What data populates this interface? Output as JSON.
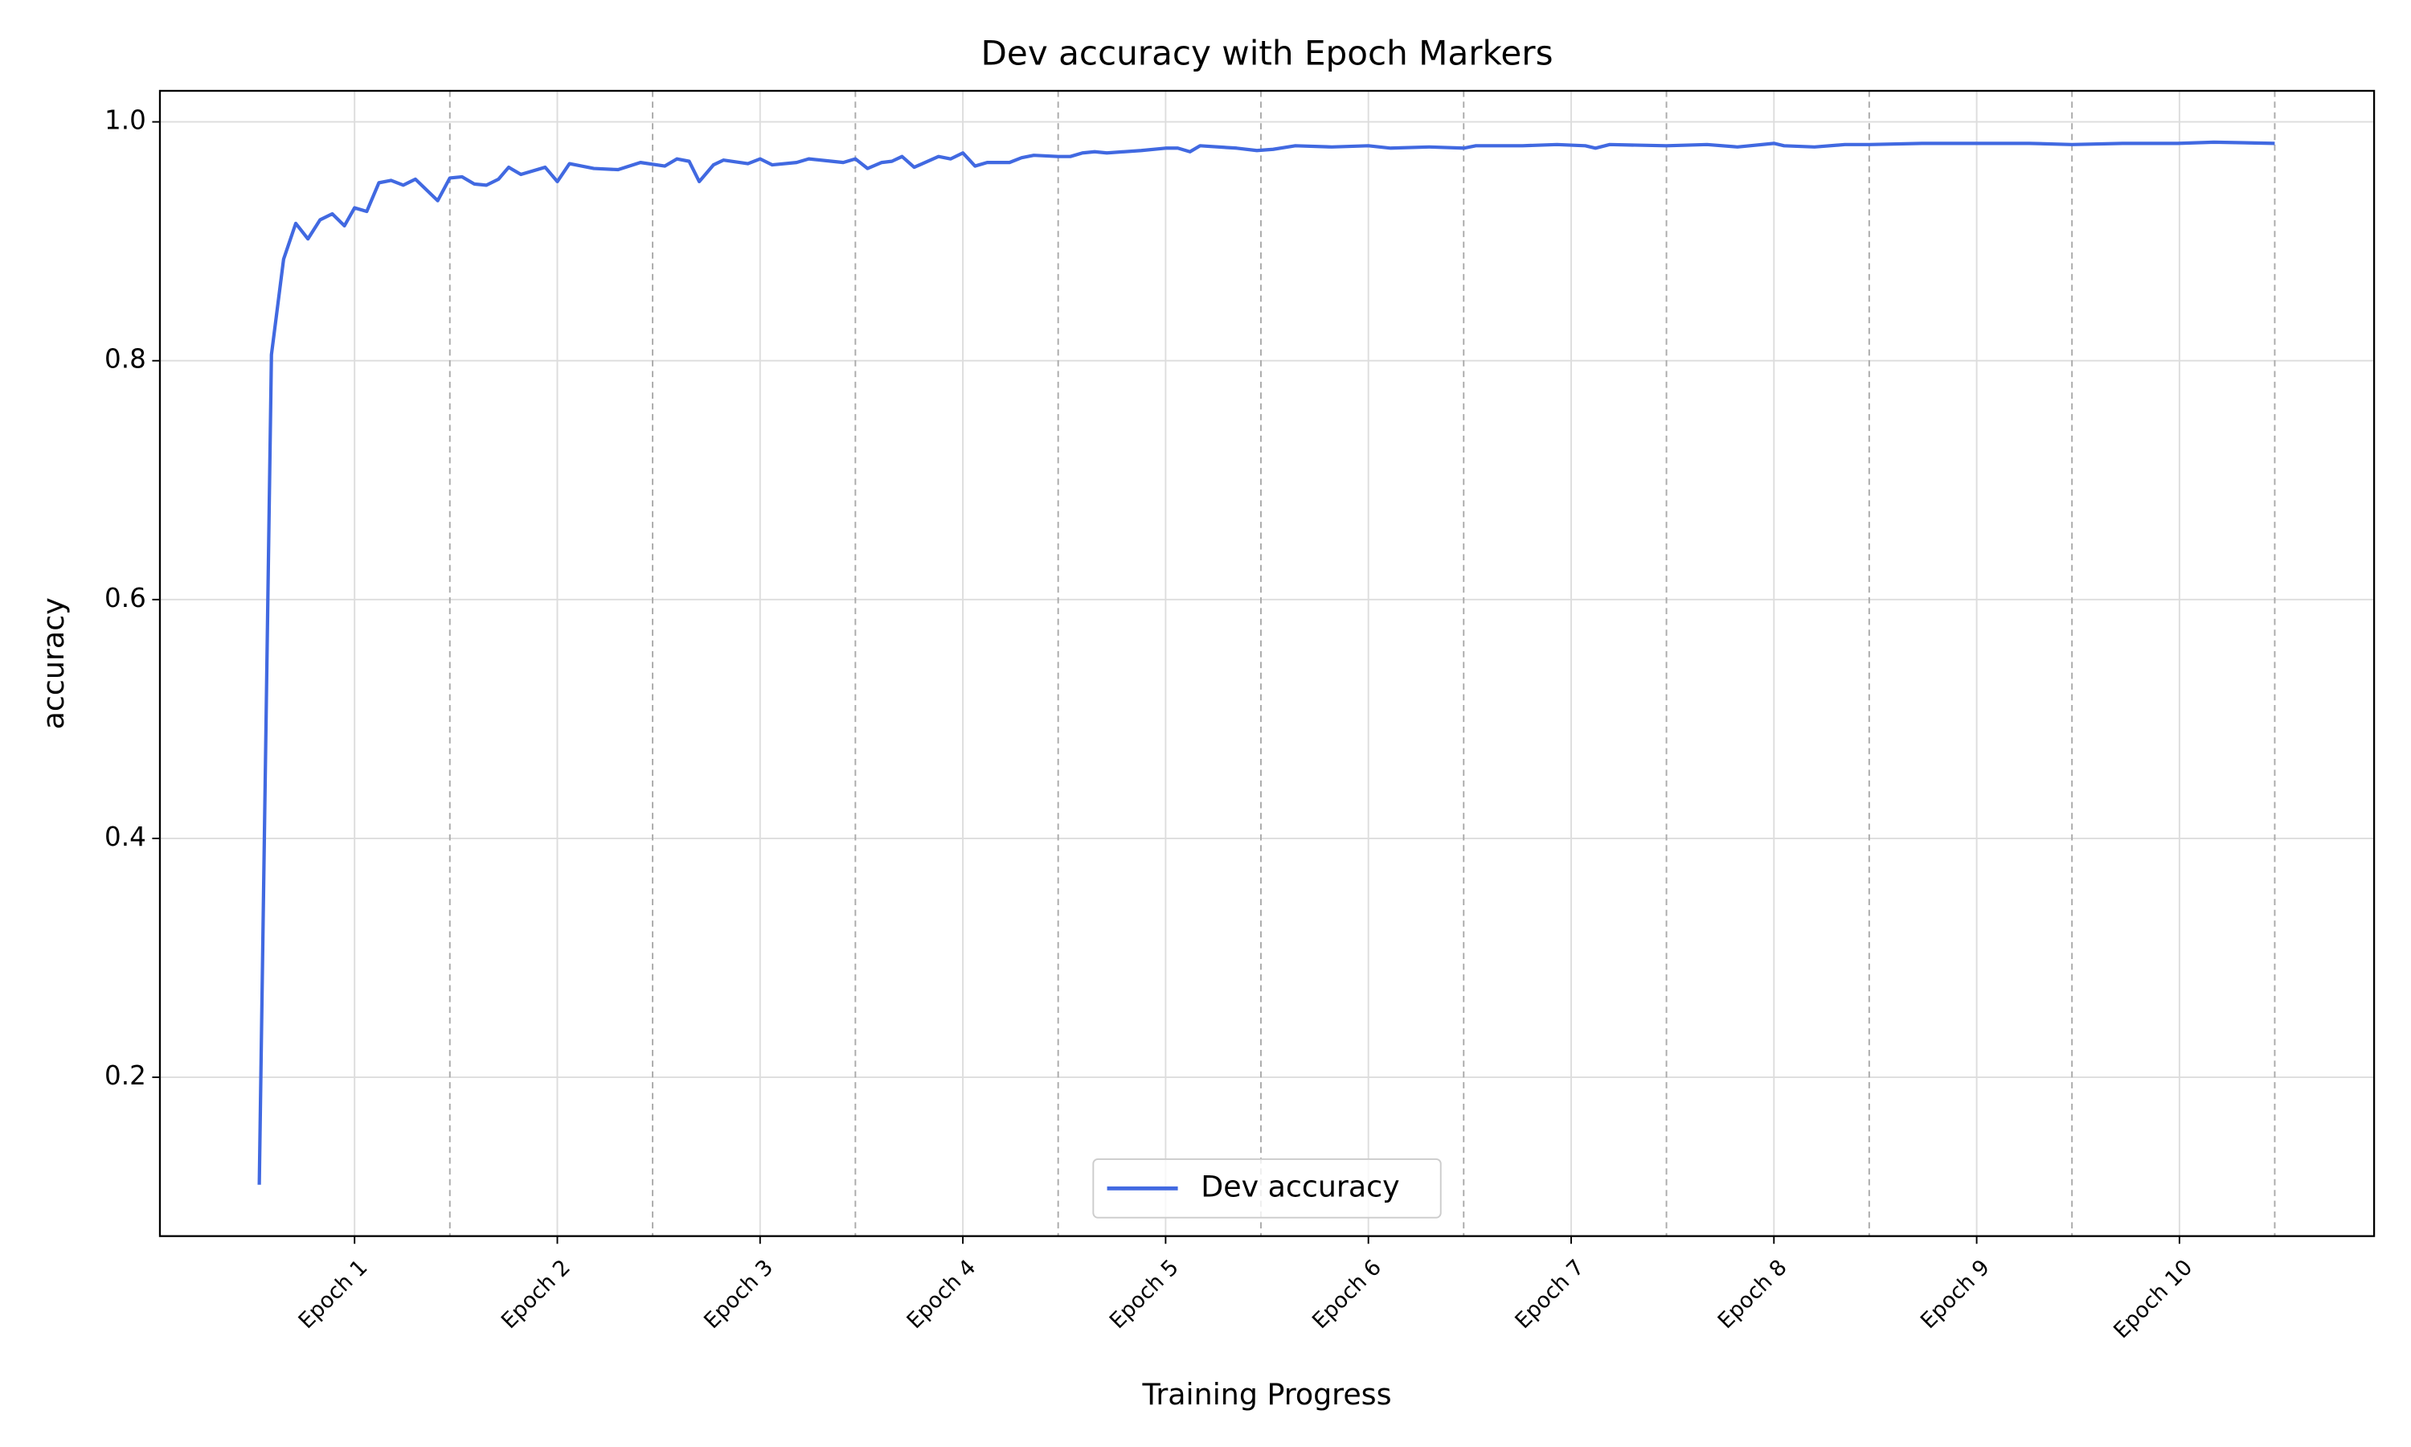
{
  "chart_data": {
    "type": "line",
    "title": "Dev accuracy with Epoch Markers",
    "x_label": "Training Progress",
    "y_label": "accuracy",
    "xlim": [
      -0.43,
      10.49
    ],
    "ylim": [
      0.067,
      1.026
    ],
    "xticks": [
      {
        "value": 0.53,
        "label": "Epoch 1"
      },
      {
        "value": 1.53,
        "label": "Epoch 2"
      },
      {
        "value": 2.53,
        "label": "Epoch 3"
      },
      {
        "value": 3.53,
        "label": "Epoch 4"
      },
      {
        "value": 4.53,
        "label": "Epoch 5"
      },
      {
        "value": 5.53,
        "label": "Epoch 6"
      },
      {
        "value": 6.53,
        "label": "Epoch 7"
      },
      {
        "value": 7.53,
        "label": "Epoch 8"
      },
      {
        "value": 8.53,
        "label": "Epoch 9"
      },
      {
        "value": 9.53,
        "label": "Epoch 10"
      }
    ],
    "yticks": [
      0.2,
      0.4,
      0.6,
      0.8,
      {
        "value": 1,
        "label": "1.0"
      }
    ],
    "epoch_markers": [
      1,
      2,
      3,
      4,
      5,
      6,
      7,
      8,
      9,
      10
    ],
    "grid": true,
    "legend_loc": "lower center",
    "x": [
      0.06,
      0.12,
      0.18,
      0.24,
      0.3,
      0.36,
      0.42,
      0.48,
      0.53,
      0.59,
      0.65,
      0.71,
      0.77,
      0.83,
      0.94,
      1.0,
      1.06,
      1.12,
      1.18,
      1.24,
      1.29,
      1.35,
      1.47,
      1.53,
      1.59,
      1.71,
      1.83,
      1.94,
      2.06,
      2.12,
      2.18,
      2.23,
      2.3,
      2.35,
      2.47,
      2.53,
      2.59,
      2.71,
      2.77,
      2.94,
      3.0,
      3.06,
      3.13,
      3.18,
      3.23,
      3.29,
      3.41,
      3.47,
      3.53,
      3.59,
      3.65,
      3.76,
      3.82,
      3.88,
      4.0,
      4.06,
      4.12,
      4.18,
      4.24,
      4.41,
      4.53,
      4.59,
      4.65,
      4.7,
      4.88,
      4.98,
      5.06,
      5.17,
      5.35,
      5.53,
      5.64,
      5.83,
      6.0,
      6.06,
      6.29,
      6.46,
      6.6,
      6.65,
      6.72,
      7.0,
      7.2,
      7.35,
      7.53,
      7.58,
      7.73,
      7.88,
      8.0,
      8.26,
      8.53,
      8.79,
      9.0,
      9.25,
      9.52,
      9.7,
      10.0
    ],
    "series": [
      {
        "name": "Dev accuracy",
        "color": "#4169e1",
        "values": [
          0.11,
          0.805,
          0.885,
          0.915,
          0.902,
          0.918,
          0.923,
          0.913,
          0.928,
          0.925,
          0.949,
          0.951,
          0.947,
          0.952,
          0.934,
          0.953,
          0.954,
          0.948,
          0.947,
          0.952,
          0.962,
          0.956,
          0.962,
          0.95,
          0.965,
          0.961,
          0.96,
          0.966,
          0.963,
          0.969,
          0.967,
          0.95,
          0.964,
          0.968,
          0.965,
          0.969,
          0.964,
          0.966,
          0.969,
          0.966,
          0.969,
          0.961,
          0.966,
          0.967,
          0.971,
          0.962,
          0.971,
          0.969,
          0.974,
          0.963,
          0.966,
          0.966,
          0.97,
          0.972,
          0.971,
          0.971,
          0.974,
          0.975,
          0.974,
          0.976,
          0.978,
          0.978,
          0.975,
          0.98,
          0.978,
          0.976,
          0.977,
          0.98,
          0.979,
          0.98,
          0.978,
          0.979,
          0.978,
          0.98,
          0.98,
          0.981,
          0.98,
          0.978,
          0.981,
          0.98,
          0.981,
          0.979,
          0.982,
          0.98,
          0.979,
          0.981,
          0.981,
          0.982,
          0.982,
          0.982,
          0.981,
          0.982,
          0.982,
          0.983,
          0.982
        ]
      }
    ]
  }
}
